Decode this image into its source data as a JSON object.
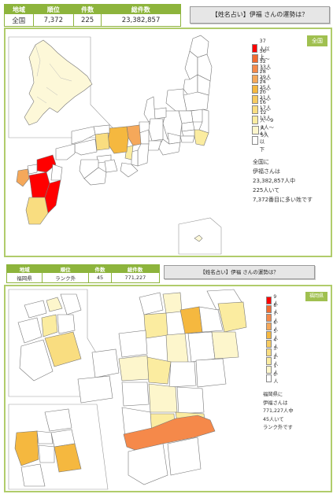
{
  "national": {
    "headers": [
      "地域",
      "順位",
      "件数",
      "総件数"
    ],
    "values": [
      "全国",
      "7,372",
      "225",
      "23,382,857"
    ],
    "fortune_button": "【姓名占い】伊福 さんの運勢は？",
    "region_badge": "全国",
    "legend": [
      "37人以上",
      "36人〜33人",
      "32人〜29人",
      "28人〜25人",
      "24人〜21人",
      "20人〜17人",
      "16人〜13人",
      "12人〜9人",
      "8人〜5人",
      "4人以下"
    ],
    "legend_colors": [
      "#ff0000",
      "#f26a30",
      "#f5894a",
      "#f5a85a",
      "#f5b83f",
      "#f7cb60",
      "#f9dd80",
      "#fbeca0",
      "#fdf6cc",
      "#ffffff"
    ],
    "summary": [
      "全国に",
      "伊福さんは",
      "23,382,857人中",
      "225人いて",
      "7,372番目に多い姓です"
    ]
  },
  "fukuoka": {
    "headers": [
      "地域",
      "順位",
      "件数",
      "総件数"
    ],
    "values": [
      "福岡県",
      "ランク外",
      "45",
      "771,227"
    ],
    "fortune_button": "【姓名占い】伊福 さんの運勢は？",
    "region_badge": "福岡県",
    "legend": [
      "9人",
      "8人",
      "7人",
      "6人",
      "5人",
      "4人",
      "3人",
      "2人",
      "1人",
      "0人"
    ],
    "legend_colors": [
      "#ff0000",
      "#f26a30",
      "#f5894a",
      "#f5a85a",
      "#f5b83f",
      "#f7cb60",
      "#f9dd80",
      "#fbeca0",
      "#fdf6cc",
      "#ffffff"
    ],
    "summary": [
      "福岡県に",
      "伊福さんは",
      "771,227人中",
      "45人いて",
      "ランク外です"
    ]
  }
}
